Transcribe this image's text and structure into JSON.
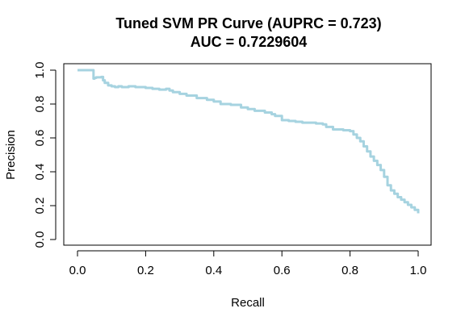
{
  "chart_data": {
    "type": "line",
    "title": "Tuned SVM PR Curve (AUPRC = 0.723)",
    "subtitle": "AUC = 0.7229604",
    "xlabel": "Recall",
    "ylabel": "Precision",
    "xlim": [
      0,
      1
    ],
    "ylim": [
      0,
      1
    ],
    "x_ticks": [
      "0.0",
      "0.2",
      "0.4",
      "0.6",
      "0.8",
      "1.0"
    ],
    "y_ticks": [
      "0.0",
      "0.2",
      "0.4",
      "0.6",
      "0.8",
      "1.0"
    ],
    "grid": false,
    "legend": "none",
    "line_color": "#a6d3e0",
    "series": [
      {
        "x": [
          0.0,
          0.02,
          0.047,
          0.047,
          0.05,
          0.055,
          0.07,
          0.075,
          0.08,
          0.09,
          0.1,
          0.11,
          0.12,
          0.13,
          0.15,
          0.17,
          0.2,
          0.22,
          0.24,
          0.26,
          0.27,
          0.28,
          0.3,
          0.32,
          0.35,
          0.38,
          0.4,
          0.42,
          0.45,
          0.48,
          0.5,
          0.52,
          0.55,
          0.57,
          0.58,
          0.6,
          0.62,
          0.64,
          0.66,
          0.7,
          0.72,
          0.73,
          0.75,
          0.78,
          0.8,
          0.81,
          0.82,
          0.83,
          0.84,
          0.85,
          0.86,
          0.87,
          0.88,
          0.89,
          0.9,
          0.91,
          0.92,
          0.93,
          0.94,
          0.95,
          0.96,
          0.97,
          0.98,
          0.99,
          1.0
        ],
        "y": [
          1.0,
          1.0,
          1.0,
          0.95,
          0.955,
          0.958,
          0.96,
          0.94,
          0.925,
          0.91,
          0.905,
          0.9,
          0.905,
          0.9,
          0.905,
          0.9,
          0.895,
          0.89,
          0.885,
          0.89,
          0.88,
          0.87,
          0.86,
          0.85,
          0.835,
          0.825,
          0.815,
          0.8,
          0.795,
          0.78,
          0.77,
          0.76,
          0.75,
          0.74,
          0.73,
          0.705,
          0.7,
          0.695,
          0.69,
          0.685,
          0.68,
          0.665,
          0.65,
          0.645,
          0.64,
          0.62,
          0.6,
          0.58,
          0.55,
          0.52,
          0.49,
          0.465,
          0.44,
          0.41,
          0.37,
          0.32,
          0.29,
          0.27,
          0.25,
          0.235,
          0.22,
          0.205,
          0.19,
          0.175,
          0.155
        ]
      }
    ]
  }
}
